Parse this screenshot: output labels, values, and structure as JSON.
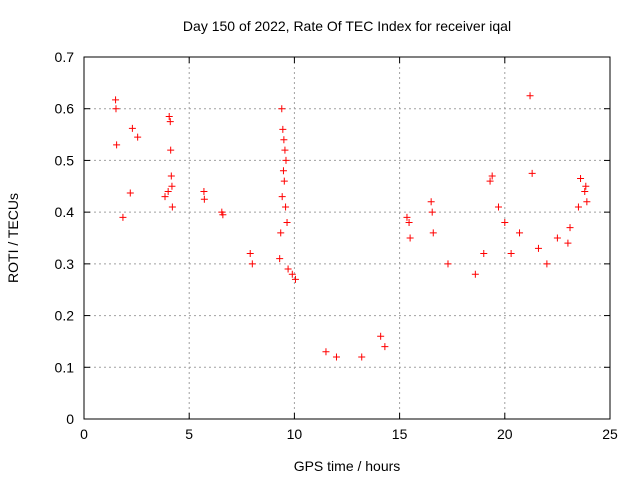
{
  "chart_data": {
    "type": "scatter",
    "title": "Day 150 of 2022, Rate Of TEC Index for receiver iqal",
    "xlabel": "GPS time / hours",
    "ylabel": "ROTI / TECUs",
    "xlim": [
      0,
      25
    ],
    "ylim": [
      0,
      0.7
    ],
    "xticks": [
      0,
      5,
      10,
      15,
      20,
      25
    ],
    "yticks": [
      0,
      0.1,
      0.2,
      0.3,
      0.4,
      0.5,
      0.6,
      0.7
    ],
    "grid": true,
    "marker": "+",
    "color": "#ff0000",
    "series": [
      {
        "x": [
          1.5,
          1.52,
          1.55,
          2.3,
          2.55,
          2.2,
          1.85,
          4.05,
          4.1,
          4.12,
          4.15,
          4.18,
          4.0,
          3.85,
          4.2,
          5.7,
          5.72,
          6.55,
          6.6,
          7.9,
          8.0,
          9.3,
          9.4,
          9.45,
          9.5,
          9.55,
          9.6,
          9.48,
          9.52,
          9.42,
          9.58,
          9.65,
          9.35,
          9.7,
          9.9,
          10.05,
          15.35,
          15.45,
          15.5,
          16.5,
          16.55,
          16.6,
          17.3,
          19.0,
          19.3,
          19.4,
          19.7,
          20.0,
          20.7,
          21.2,
          21.3,
          21.6,
          22.0,
          22.5,
          23.0,
          23.1,
          23.5,
          23.6,
          23.8,
          23.85,
          23.9,
          20.3,
          18.6,
          14.1,
          14.3,
          13.2,
          12.0,
          11.5
        ],
        "y": [
          0.617,
          0.6,
          0.53,
          0.562,
          0.545,
          0.437,
          0.39,
          0.585,
          0.575,
          0.52,
          0.47,
          0.45,
          0.44,
          0.43,
          0.41,
          0.44,
          0.425,
          0.4,
          0.395,
          0.32,
          0.3,
          0.31,
          0.6,
          0.56,
          0.54,
          0.52,
          0.5,
          0.48,
          0.46,
          0.43,
          0.41,
          0.38,
          0.36,
          0.29,
          0.28,
          0.27,
          0.39,
          0.38,
          0.35,
          0.42,
          0.4,
          0.36,
          0.3,
          0.32,
          0.46,
          0.47,
          0.41,
          0.38,
          0.36,
          0.625,
          0.475,
          0.33,
          0.3,
          0.35,
          0.34,
          0.37,
          0.41,
          0.465,
          0.44,
          0.45,
          0.42,
          0.32,
          0.28,
          0.16,
          0.14,
          0.12,
          0.12,
          0.13
        ]
      }
    ]
  }
}
